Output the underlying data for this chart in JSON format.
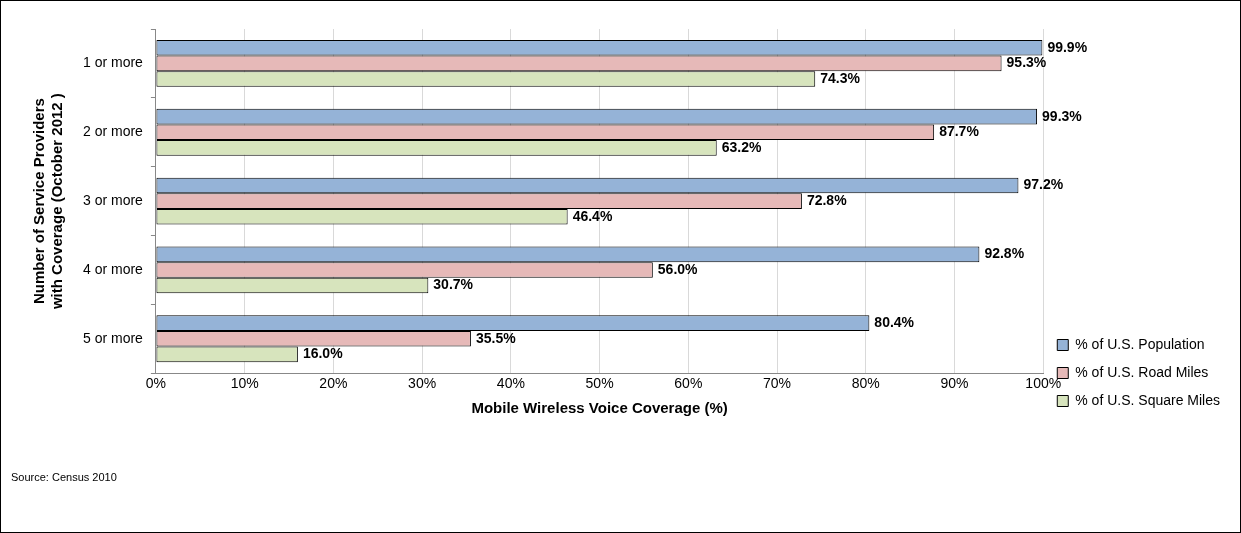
{
  "chart_data": {
    "type": "bar",
    "orientation": "horizontal",
    "categories": [
      "1 or more",
      "2 or more",
      "3 or more",
      "4 or more",
      "5 or more"
    ],
    "series": [
      {
        "name": "% of U.S. Population",
        "color": "#95b3d7",
        "values": [
          99.9,
          99.3,
          97.2,
          92.8,
          80.4
        ],
        "value_labels": [
          "99.9%",
          "99.3%",
          "97.2%",
          "92.8%",
          "80.4%"
        ]
      },
      {
        "name": "% of U.S. Road Miles",
        "color": "#e6b9b8",
        "values": [
          95.3,
          87.7,
          72.8,
          56.0,
          35.5
        ],
        "value_labels": [
          "95.3%",
          "87.7%",
          "72.8%",
          "56.0%",
          "35.5%"
        ]
      },
      {
        "name": "% of U.S. Square Miles",
        "color": "#d7e4bd",
        "values": [
          74.3,
          63.2,
          46.4,
          30.7,
          16.0
        ],
        "value_labels": [
          "74.3%",
          "63.2%",
          "46.4%",
          "30.7%",
          "16.0%"
        ]
      }
    ],
    "xlim": [
      0,
      100
    ],
    "xticks": [
      {
        "value": 0,
        "label": "0%"
      },
      {
        "value": 10,
        "label": "10%"
      },
      {
        "value": 20,
        "label": "20%"
      },
      {
        "value": 30,
        "label": "30%"
      },
      {
        "value": 40,
        "label": "40%"
      },
      {
        "value": 50,
        "label": "50%"
      },
      {
        "value": 60,
        "label": "60%"
      },
      {
        "value": 70,
        "label": "70%"
      },
      {
        "value": 80,
        "label": "80%"
      },
      {
        "value": 90,
        "label": "90%"
      },
      {
        "value": 100,
        "label": "100%"
      }
    ],
    "xlabel": "Mobile Wireless Voice Coverage (%)",
    "ylabel": "Number of Service Providers with Coverage (October 2012 )",
    "grid": "x",
    "legend": "right",
    "annotations": [
      "Source: Census 2010"
    ]
  }
}
